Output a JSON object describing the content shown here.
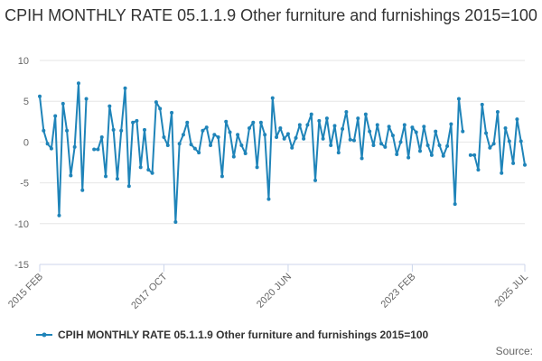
{
  "page": {
    "title": "CPIH MONTHLY RATE 05.1.1.9 Other furniture and furnishings 2015=100",
    "credits": "Source:"
  },
  "colors": {
    "series": "#1f84b9",
    "grid": "#e6e6e6",
    "axis_text": "#666666",
    "axis_line": "#ccd6eb"
  },
  "chart_data": {
    "type": "line",
    "title": "CPIH MONTHLY RATE 05.1.1.9 Other furniture and furnishings 2015=100",
    "xlabel": "",
    "ylabel": "",
    "ylim": [
      -15,
      10
    ],
    "yticks": [
      10,
      5,
      0,
      -5,
      -10,
      -15
    ],
    "xticks": [
      {
        "index": 0,
        "label": "2015 FEB"
      },
      {
        "index": 32,
        "label": "2017 OCT"
      },
      {
        "index": 64,
        "label": "2020 JUN"
      },
      {
        "index": 96,
        "label": "2023 FEB"
      },
      {
        "index": 125,
        "label": "2025 JUL"
      }
    ],
    "grid": true,
    "legend_position": "bottom",
    "markers": true,
    "x_start": "2015 FEB",
    "x_end": "2025 JUL",
    "x_interval": "month",
    "series": [
      {
        "name": "CPIH MONTHLY RATE 05.1.1.9 Other furniture and furnishings 2015=100",
        "values": [
          5.6,
          1.4,
          -0.2,
          -0.8,
          3.2,
          -9.0,
          4.7,
          1.4,
          -4.1,
          -0.6,
          7.2,
          -5.9,
          5.3,
          null,
          -0.9,
          -0.9,
          0.6,
          -4.2,
          4.4,
          1.5,
          -4.5,
          1.4,
          6.6,
          -5.4,
          2.4,
          2.6,
          -3.1,
          1.5,
          -3.4,
          -3.8,
          4.9,
          4.1,
          0.6,
          -0.4,
          3.6,
          -9.8,
          -0.2,
          0.9,
          2.4,
          -0.3,
          -0.8,
          -1.3,
          1.4,
          1.8,
          -0.4,
          0.9,
          0.6,
          -4.2,
          2.5,
          1.2,
          -1.8,
          0.9,
          -0.4,
          -1.4,
          1.7,
          2.4,
          -3.1,
          2.4,
          0.9,
          -7.0,
          5.4,
          0.6,
          1.7,
          0.4,
          1.0,
          -0.7,
          0.5,
          2.1,
          0.4,
          2.1,
          3.4,
          -4.7,
          2.6,
          0.4,
          2.9,
          -0.4,
          2.0,
          -1.3,
          1.6,
          3.7,
          0.3,
          0.2,
          2.9,
          -2.0,
          3.4,
          1.3,
          -0.4,
          2.1,
          -0.2,
          -0.6,
          1.9,
          0.8,
          -1.5,
          0.0,
          2.1,
          -1.9,
          1.8,
          1.2,
          -1.1,
          1.9,
          -0.4,
          -1.6,
          1.3,
          -0.4,
          -1.7,
          -0.5,
          2.2,
          -7.6,
          5.3,
          1.3,
          null,
          -1.6,
          -1.6,
          -3.4,
          4.6,
          1.1,
          -0.7,
          -0.2,
          3.7,
          -3.8,
          1.7,
          0.1,
          -2.6,
          2.8,
          0.1,
          -2.8
        ]
      }
    ]
  }
}
